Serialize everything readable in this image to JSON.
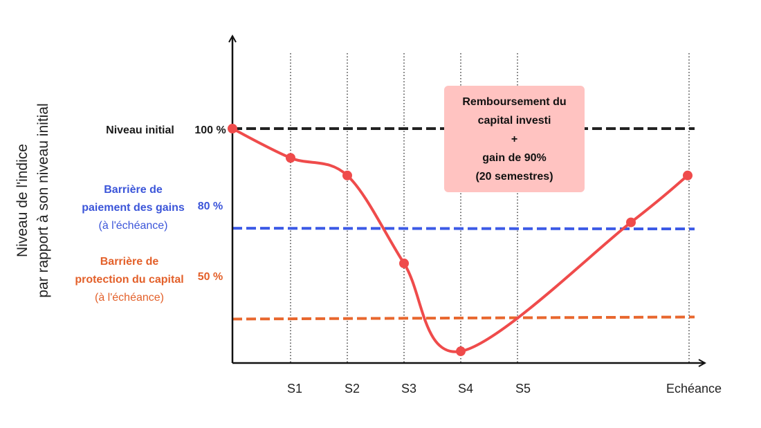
{
  "chart_data": {
    "type": "line",
    "ylabel_lines": [
      "Niveau de l'indice",
      "par rapport à son niveau initial"
    ],
    "x_ticks": [
      "S1",
      "S2",
      "S3",
      "S4",
      "S5",
      "Echéance"
    ],
    "ylim": [
      20,
      115
    ],
    "series": [
      {
        "color": "#ef4b4b",
        "points": [
          {
            "x": "Départ",
            "y": 100
          },
          {
            "x": "S1",
            "y": 90
          },
          {
            "x": "S2",
            "y": 84
          },
          {
            "x": "S3",
            "y": 54
          },
          {
            "x": "S4",
            "y": 24
          },
          {
            "x": "S5 + 2",
            "y": 68
          },
          {
            "x": "Echéance",
            "y": 84
          }
        ]
      }
    ],
    "reference_lines": [
      {
        "key": "initial",
        "y": 100,
        "tick": "100 %",
        "label_lines": [
          "Niveau initial"
        ],
        "color": "#1a1a1a",
        "line_color": "#222222"
      },
      {
        "key": "gains",
        "y": 66,
        "tick": "80 %",
        "label_lines": [
          "Barrière de",
          "paiement des gains",
          "(à l'échéance)"
        ],
        "color": "#3b55d9",
        "line_color": "#3c5ae6"
      },
      {
        "key": "protection",
        "y": 35,
        "tick": "50 %",
        "label_lines": [
          "Barrière de",
          "protection du capital",
          "(à l'échéance)"
        ],
        "color": "#e3602a",
        "line_color": "#e8672e"
      }
    ],
    "annotation": {
      "lines": [
        "Remboursement du",
        "capital investi",
        "+",
        "gain de 90%",
        "(20 semestres)"
      ],
      "background": "#ffc3c1"
    },
    "grid": "vertical dotted lines at each semester"
  }
}
